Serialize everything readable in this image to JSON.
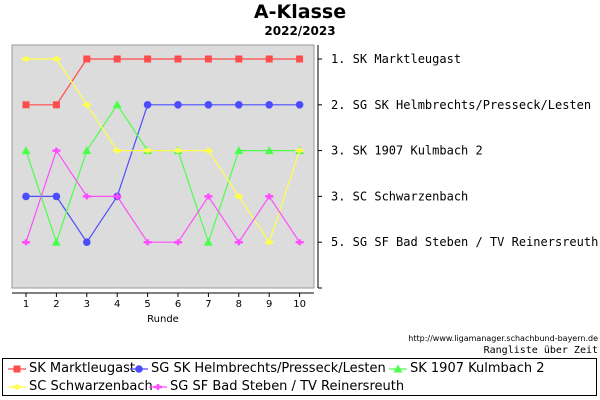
{
  "header": {
    "title": "A-Klasse",
    "subtitle": "2022/2023"
  },
  "chart_data": {
    "type": "line",
    "title": "A-Klasse",
    "subtitle": "2022/2023",
    "xlabel": "Runde",
    "ylabel": "",
    "x": [
      1,
      2,
      3,
      4,
      5,
      6,
      7,
      8,
      9,
      10
    ],
    "ylim": [
      1,
      5
    ],
    "y_inverted": true,
    "grid": false,
    "legend_position": "bottom",
    "right_labels": [
      "1.  SK Marktleugast",
      "2.  SG SK Helmbrechts/Presseck/Lesten",
      "3.  SK 1907 Kulmbach 2",
      "3.  SC Schwarzenbach",
      "5.  SG SF Bad Steben / TV Reinersreuth"
    ],
    "series": [
      {
        "name": "SK Marktleugast",
        "color": "#ff4c4c",
        "marker": "square",
        "values": [
          2,
          2,
          1,
          1,
          1,
          1,
          1,
          1,
          1,
          1
        ]
      },
      {
        "name": "SG SK Helmbrechts/Presseck/Lesten",
        "color": "#4c4cff",
        "marker": "circle",
        "values": [
          4,
          4,
          5,
          4,
          2,
          2,
          2,
          2,
          2,
          2
        ]
      },
      {
        "name": "SK 1907 Kulmbach 2",
        "color": "#4cff4c",
        "marker": "triangle",
        "values": [
          3,
          5,
          3,
          2,
          3,
          3,
          5,
          3,
          3,
          3
        ]
      },
      {
        "name": "SC Schwarzenbach",
        "color": "#ffff4c",
        "marker": "diamond",
        "values": [
          1,
          1,
          2,
          3,
          3,
          3,
          3,
          4,
          5,
          3
        ]
      },
      {
        "name": "SG SF Bad Steben / TV Reinersreuth",
        "color": "#ff4cff",
        "marker": "cross",
        "values": [
          5,
          3,
          4,
          4,
          5,
          5,
          4,
          5,
          4,
          5
        ]
      }
    ]
  },
  "credits": {
    "url": "http://www.ligamanager.schachbund-bayern.de",
    "caption": "Rangliste über Zeit"
  }
}
